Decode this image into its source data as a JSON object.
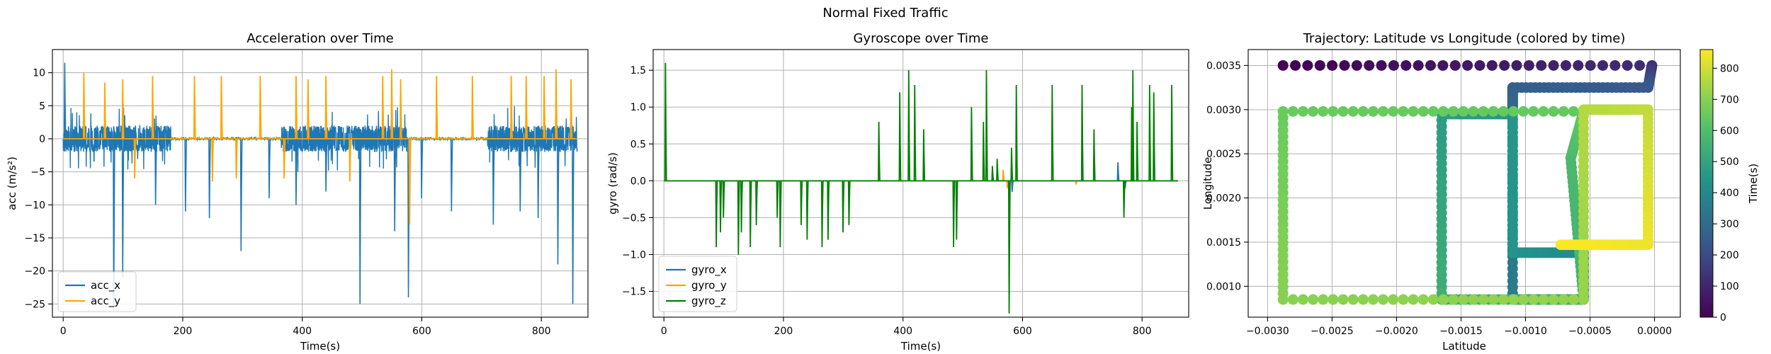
{
  "figure": {
    "suptitle": "Normal Fixed Traffic"
  },
  "chart_data": [
    {
      "type": "line",
      "title": "Acceleration over Time",
      "xlabel": "Time(s)",
      "ylabel": "acc (m/s²)",
      "xlim": [
        -18,
        878
      ],
      "ylim": [
        -27,
        13.5
      ],
      "xticks": [
        0,
        200,
        400,
        600,
        800
      ],
      "yticks": [
        10,
        5,
        0,
        -5,
        -10,
        -15,
        -20,
        -25
      ],
      "grid": true,
      "legend_position": "lower-left",
      "series": [
        {
          "name": "acc_x",
          "color": "#1f77b4",
          "noise_segments": [
            [
              0,
              180
            ],
            [
              365,
              575
            ],
            [
              710,
              860
            ]
          ],
          "noise_amplitude": 2,
          "x": [
            3,
            85,
            100,
            155,
            205,
            245,
            298,
            345,
            390,
            440,
            497,
            555,
            578,
            600,
            650,
            720,
            765,
            795,
            828,
            853
          ],
          "values": [
            11.5,
            -26,
            -21,
            -10,
            -11,
            -12,
            -17,
            -9,
            -10,
            -8,
            -25,
            -14,
            -24,
            -9,
            -11,
            -13,
            -11,
            -12,
            -19,
            -25
          ]
        },
        {
          "name": "acc_y",
          "color": "#ffa500",
          "x": [
            35,
            70,
            100,
            120,
            150,
            220,
            250,
            265,
            290,
            330,
            370,
            390,
            410,
            440,
            480,
            535,
            550,
            565,
            580,
            625,
            685,
            750,
            775,
            805,
            825,
            850
          ],
          "values": [
            10,
            8.5,
            9,
            -6,
            9.5,
            9.5,
            -6.5,
            9.5,
            -6,
            9.5,
            -6,
            9.5,
            9,
            9.5,
            -6.5,
            9.5,
            10.5,
            9,
            -13,
            9.5,
            9.5,
            9.5,
            9.5,
            9.5,
            10.5,
            9
          ]
        }
      ]
    },
    {
      "type": "line",
      "title": "Gyroscope over Time",
      "xlabel": "Time(s)",
      "ylabel": "gyro (rad/s)",
      "xlim": [
        -18,
        878
      ],
      "ylim": [
        -1.85,
        1.78
      ],
      "xticks": [
        0,
        200,
        400,
        600,
        800
      ],
      "yticks": [
        1.5,
        1.0,
        0.5,
        0.0,
        -0.5,
        -1.0,
        -1.5
      ],
      "grid": true,
      "legend_position": "lower-left",
      "series": [
        {
          "name": "gyro_x",
          "color": "#1f77b4",
          "x": [
            578,
            583,
            760,
            772
          ],
          "values": [
            -0.4,
            -0.15,
            0.25,
            -0.1
          ]
        },
        {
          "name": "gyro_y",
          "color": "#ffa500",
          "x": [
            568,
            575,
            690,
            700
          ],
          "values": [
            0.15,
            -0.1,
            -0.05,
            0.03
          ]
        },
        {
          "name": "gyro_z",
          "color": "#008000",
          "x": [
            3,
            88,
            95,
            100,
            125,
            130,
            145,
            155,
            190,
            195,
            230,
            240,
            265,
            275,
            300,
            310,
            360,
            395,
            410,
            420,
            435,
            485,
            490,
            515,
            535,
            540,
            550,
            558,
            578,
            582,
            590,
            650,
            700,
            720,
            770,
            783,
            785,
            792,
            813,
            820,
            850
          ],
          "values": [
            1.6,
            -0.9,
            -0.7,
            -0.5,
            -1.0,
            -0.7,
            -0.9,
            -0.6,
            -0.5,
            -0.9,
            -0.6,
            -0.8,
            -0.9,
            -0.8,
            -0.7,
            -0.6,
            0.8,
            1.2,
            1.5,
            1.3,
            0.7,
            -0.9,
            -0.8,
            1.0,
            0.8,
            1.5,
            0.2,
            0.3,
            -1.8,
            0.45,
            1.3,
            1.3,
            1.3,
            0.7,
            -0.5,
            1.0,
            1.5,
            0.8,
            1.3,
            1.2,
            1.3
          ]
        }
      ]
    },
    {
      "type": "scatter",
      "title": "Trajectory: Latitude vs Longitude (colored by time)",
      "xlabel": "Latitude",
      "ylabel": "Longitude",
      "xlim": [
        -0.00315,
        0.0002
      ],
      "ylim": [
        0.00065,
        0.00368
      ],
      "xticks": [
        -0.003,
        -0.0025,
        -0.002,
        -0.0015,
        -0.001,
        -0.0005,
        0.0
      ],
      "xtick_labels": [
        "−0.0030",
        "−0.0025",
        "−0.0020",
        "−0.0015",
        "−0.0010",
        "−0.0005",
        "0.0000"
      ],
      "yticks": [
        0.001,
        0.0015,
        0.002,
        0.0025,
        0.003,
        0.0035
      ],
      "ytick_labels": [
        "0.0010",
        "0.0015",
        "0.0020",
        "0.0025",
        "0.0030",
        "0.0035"
      ],
      "colormap": "viridis",
      "colorbar": {
        "label": "Time(s)",
        "range": [
          0,
          860
        ],
        "ticks": [
          0,
          100,
          200,
          300,
          400,
          500,
          600,
          700,
          800
        ]
      },
      "path": {
        "time": [
          0,
          120,
          240,
          260,
          290,
          360,
          380,
          395,
          440,
          450,
          470,
          540,
          560,
          580,
          650,
          660,
          700,
          720,
          760,
          780,
          840,
          860
        ],
        "lat": [
          -0.00288,
          -2e-05,
          -5e-05,
          -0.0011,
          -0.0011,
          -0.0011,
          -0.00055,
          -0.00055,
          -0.0011,
          -0.0011,
          -0.00165,
          -0.00165,
          -0.00055,
          -0.00065,
          -0.00055,
          -0.00288,
          -0.00288,
          -0.00055,
          -0.00055,
          -5e-05,
          -5e-05,
          -0.00075
        ],
        "lon": [
          0.0035,
          0.0035,
          0.00325,
          0.00325,
          0.00295,
          0.00085,
          0.00085,
          0.00138,
          0.00138,
          0.00295,
          0.00295,
          0.00085,
          0.00085,
          0.00245,
          0.00298,
          0.00298,
          0.00085,
          0.00085,
          0.003,
          0.003,
          0.00147,
          0.00147
        ]
      }
    }
  ]
}
